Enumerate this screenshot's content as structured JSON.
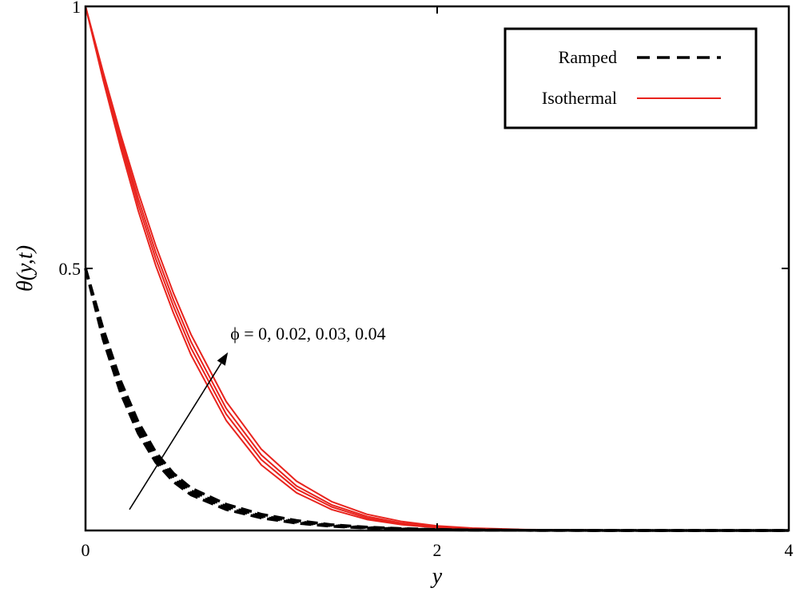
{
  "chart_data": {
    "type": "line",
    "title": "",
    "xlabel": "y",
    "ylabel": "θ(y,t)",
    "xlim": [
      0,
      4
    ],
    "ylim": [
      0,
      1
    ],
    "x_ticks": [
      0,
      2,
      4
    ],
    "x_tick_labels": [
      "0",
      "2",
      "4"
    ],
    "y_ticks": [
      0.5,
      1
    ],
    "y_tick_labels": [
      "0.5",
      "1"
    ],
    "grid": false,
    "legend_position": "top-right",
    "legend": [
      {
        "label": "Ramped",
        "style": "dashed",
        "color": "#000000"
      },
      {
        "label": "Isothermal",
        "style": "solid",
        "color": "#e8231d"
      }
    ],
    "annotation": {
      "text": "ϕ = 0, 0.02, 0.03, 0.04",
      "arrow_from": [
        0.25,
        0.04
      ],
      "arrow_to": [
        0.81,
        0.34
      ]
    },
    "series": [
      {
        "name": "Isothermal ϕ=0",
        "group": "Isothermal",
        "phi": 0,
        "style": "solid",
        "color": "#e8231d",
        "x": [
          0,
          0.1,
          0.2,
          0.3,
          0.4,
          0.5,
          0.6,
          0.8,
          1.0,
          1.2,
          1.4,
          1.6,
          1.8,
          2.0,
          2.2,
          2.5,
          3.0,
          3.5,
          4.0
        ],
        "y": [
          1.0,
          0.86,
          0.73,
          0.61,
          0.505,
          0.415,
          0.335,
          0.21,
          0.125,
          0.072,
          0.04,
          0.021,
          0.011,
          0.0055,
          0.0028,
          0.001,
          0.0002,
          3e-05,
          0.0
        ]
      },
      {
        "name": "Isothermal ϕ=0.02",
        "group": "Isothermal",
        "phi": 0.02,
        "style": "solid",
        "color": "#e8231d",
        "x": [
          0,
          0.1,
          0.2,
          0.3,
          0.4,
          0.5,
          0.6,
          0.8,
          1.0,
          1.2,
          1.4,
          1.6,
          1.8,
          2.0,
          2.2,
          2.5,
          3.0,
          3.5,
          4.0
        ],
        "y": [
          1.0,
          0.865,
          0.74,
          0.622,
          0.518,
          0.428,
          0.348,
          0.222,
          0.135,
          0.079,
          0.045,
          0.024,
          0.0125,
          0.0065,
          0.0033,
          0.0012,
          0.00025,
          4e-05,
          0.0
        ]
      },
      {
        "name": "Isothermal ϕ=0.03",
        "group": "Isothermal",
        "phi": 0.03,
        "style": "solid",
        "color": "#e8231d",
        "x": [
          0,
          0.1,
          0.2,
          0.3,
          0.4,
          0.5,
          0.6,
          0.8,
          1.0,
          1.2,
          1.4,
          1.6,
          1.8,
          2.0,
          2.2,
          2.5,
          3.0,
          3.5,
          4.0
        ],
        "y": [
          1.0,
          0.87,
          0.748,
          0.633,
          0.53,
          0.44,
          0.36,
          0.233,
          0.144,
          0.085,
          0.049,
          0.027,
          0.014,
          0.0073,
          0.0037,
          0.0014,
          0.0003,
          5e-05,
          0.0
        ]
      },
      {
        "name": "Isothermal ϕ=0.04",
        "group": "Isothermal",
        "phi": 0.04,
        "style": "solid",
        "color": "#e8231d",
        "x": [
          0,
          0.1,
          0.2,
          0.3,
          0.4,
          0.5,
          0.6,
          0.8,
          1.0,
          1.2,
          1.4,
          1.6,
          1.8,
          2.0,
          2.2,
          2.5,
          3.0,
          3.5,
          4.0
        ],
        "y": [
          1.0,
          0.875,
          0.756,
          0.645,
          0.543,
          0.453,
          0.374,
          0.246,
          0.155,
          0.094,
          0.055,
          0.031,
          0.017,
          0.0088,
          0.0045,
          0.0017,
          0.0004,
          6e-05,
          0.0
        ]
      },
      {
        "name": "Ramped ϕ=0",
        "group": "Ramped",
        "phi": 0,
        "style": "dashed",
        "color": "#000000",
        "x": [
          0,
          0.1,
          0.2,
          0.3,
          0.4,
          0.5,
          0.6,
          0.8,
          1.0,
          1.2,
          1.4,
          1.6,
          1.8,
          2.0,
          2.2,
          2.5,
          3.0,
          3.5,
          4.0
        ],
        "y": [
          0.5,
          0.365,
          0.262,
          0.185,
          0.13,
          0.093,
          0.068,
          0.04,
          0.024,
          0.014,
          0.008,
          0.0045,
          0.0025,
          0.0013,
          0.0007,
          0.00025,
          5e-05,
          1e-05,
          0.0
        ]
      },
      {
        "name": "Ramped ϕ=0.02",
        "group": "Ramped",
        "phi": 0.02,
        "style": "dashed",
        "color": "#000000",
        "x": [
          0,
          0.1,
          0.2,
          0.3,
          0.4,
          0.5,
          0.6,
          0.8,
          1.0,
          1.2,
          1.4,
          1.6,
          1.8,
          2.0,
          2.2,
          2.5,
          3.0,
          3.5,
          4.0
        ],
        "y": [
          0.5,
          0.372,
          0.27,
          0.192,
          0.136,
          0.098,
          0.072,
          0.043,
          0.026,
          0.0155,
          0.009,
          0.0051,
          0.0028,
          0.0015,
          0.0008,
          0.0003,
          6e-05,
          1e-05,
          0.0
        ]
      },
      {
        "name": "Ramped ϕ=0.03",
        "group": "Ramped",
        "phi": 0.03,
        "style": "dashed",
        "color": "#000000",
        "x": [
          0,
          0.1,
          0.2,
          0.3,
          0.4,
          0.5,
          0.6,
          0.8,
          1.0,
          1.2,
          1.4,
          1.6,
          1.8,
          2.0,
          2.2,
          2.5,
          3.0,
          3.5,
          4.0
        ],
        "y": [
          0.5,
          0.378,
          0.277,
          0.199,
          0.142,
          0.103,
          0.076,
          0.046,
          0.028,
          0.017,
          0.0099,
          0.0057,
          0.0032,
          0.0017,
          0.0009,
          0.00035,
          7e-05,
          1e-05,
          0.0
        ]
      },
      {
        "name": "Ramped ϕ=0.04",
        "group": "Ramped",
        "phi": 0.04,
        "style": "dashed",
        "color": "#000000",
        "x": [
          0,
          0.1,
          0.2,
          0.3,
          0.4,
          0.5,
          0.6,
          0.8,
          1.0,
          1.2,
          1.4,
          1.6,
          1.8,
          2.0,
          2.2,
          2.5,
          3.0,
          3.5,
          4.0
        ],
        "y": [
          0.5,
          0.385,
          0.285,
          0.207,
          0.149,
          0.109,
          0.081,
          0.05,
          0.031,
          0.019,
          0.011,
          0.0064,
          0.0036,
          0.0019,
          0.001,
          0.0004,
          8e-05,
          1e-05,
          0.0
        ]
      }
    ]
  }
}
